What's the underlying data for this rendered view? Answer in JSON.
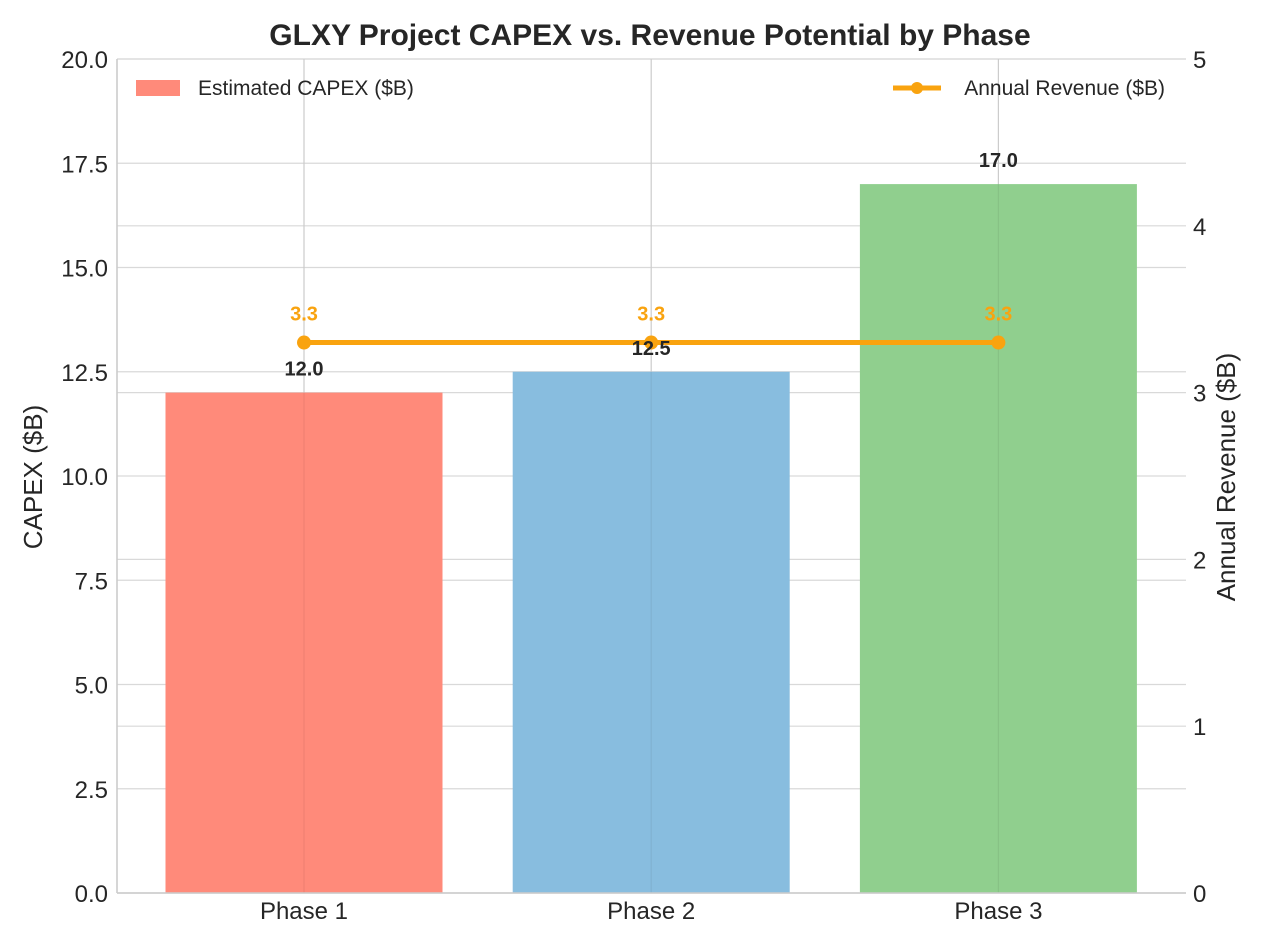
{
  "chart_data": {
    "type": "bar",
    "title": "GLXY Project CAPEX vs. Revenue Potential by Phase",
    "xlabel": "",
    "ylabel": "CAPEX ($B)",
    "y2label": "Annual Revenue ($B)",
    "categories": [
      "Phase 1",
      "Phase 2",
      "Phase 3"
    ],
    "ylim": [
      0,
      20
    ],
    "yticks": [
      "0.0",
      "2.5",
      "5.0",
      "7.5",
      "10.0",
      "12.5",
      "15.0",
      "17.5",
      "20.0"
    ],
    "y2lim": [
      0,
      5
    ],
    "y2ticks": [
      "0",
      "1",
      "2",
      "3",
      "4",
      "5"
    ],
    "grid": true,
    "series": [
      {
        "name": "Estimated CAPEX ($B)",
        "type": "bar",
        "axis": "left",
        "values": [
          12.0,
          12.5,
          17.0
        ],
        "labels": [
          "12.0",
          "12.5",
          "17.0"
        ],
        "colors": [
          "#ff8a7a",
          "#88bddf",
          "#90cf8e"
        ],
        "legend_color": "#ff8a7a"
      },
      {
        "name": "Annual Revenue ($B)",
        "type": "line",
        "axis": "right",
        "values": [
          3.3,
          3.3,
          3.3
        ],
        "labels": [
          "3.3",
          "3.3",
          "3.3"
        ],
        "color": "#f9a30f"
      }
    ],
    "legend": [
      {
        "label": "Estimated CAPEX ($B)",
        "position": "top-left"
      },
      {
        "label": "Annual Revenue ($B)",
        "position": "top-right"
      }
    ]
  }
}
